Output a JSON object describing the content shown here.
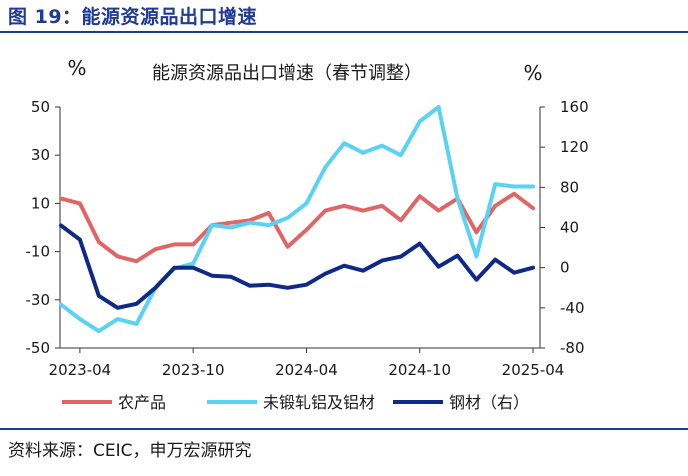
{
  "figure": {
    "title": "图 19：能源资源品出口增速",
    "source": "资料来源：CEIC，申万宏源研究"
  },
  "chart_data": {
    "type": "line",
    "title": "能源资源品出口增速（春节调整）",
    "left_unit": "%",
    "right_unit": "%",
    "left_axis": {
      "ylim": [
        -50,
        50
      ],
      "ticks": [
        50,
        30,
        10,
        -10,
        -30,
        -50
      ]
    },
    "right_axis": {
      "ylim": [
        -80,
        160
      ],
      "ticks": [
        160,
        120,
        80,
        40,
        0,
        -40,
        -80
      ]
    },
    "x_tick_labels": [
      "2023-04",
      "2023-10",
      "2024-04",
      "2024-10",
      "2025-04"
    ],
    "x": [
      "2023-03",
      "2023-04",
      "2023-05",
      "2023-06",
      "2023-07",
      "2023-08",
      "2023-09",
      "2023-10",
      "2023-11",
      "2023-12",
      "2024-01",
      "2024-02",
      "2024-03",
      "2024-04",
      "2024-05",
      "2024-06",
      "2024-07",
      "2024-08",
      "2024-09",
      "2024-10",
      "2024-11",
      "2024-12",
      "2025-01",
      "2025-02",
      "2025-03",
      "2025-04"
    ],
    "grid": false,
    "legend_position": "bottom",
    "series": [
      {
        "name": "农产品",
        "axis": "left",
        "color": "#e06666",
        "values": [
          12,
          10,
          -6,
          -12,
          -14,
          -9,
          -7,
          -7,
          1,
          2,
          3,
          6,
          -8,
          -1,
          7,
          9,
          7,
          9,
          3,
          13,
          7,
          12,
          -2,
          9,
          14,
          8
        ]
      },
      {
        "name": "未锻轧铝及铝材",
        "axis": "left",
        "color": "#5ad2f4",
        "values": [
          -32,
          -38,
          -43,
          -38,
          -40,
          -25,
          -17,
          -15,
          1,
          0,
          2,
          1,
          4,
          10,
          25,
          35,
          31,
          34,
          30,
          44,
          50,
          12,
          -12,
          18,
          17,
          17
        ]
      },
      {
        "name": "钢材（右）",
        "axis": "right",
        "color": "#0e2a86",
        "values": [
          42,
          28,
          -28,
          -40,
          -36,
          -20,
          0,
          0,
          -8,
          -9,
          -18,
          -17,
          -20,
          -17,
          -6,
          2,
          -3,
          7,
          11,
          24,
          1,
          12,
          -12,
          8,
          -5,
          0
        ]
      }
    ]
  }
}
